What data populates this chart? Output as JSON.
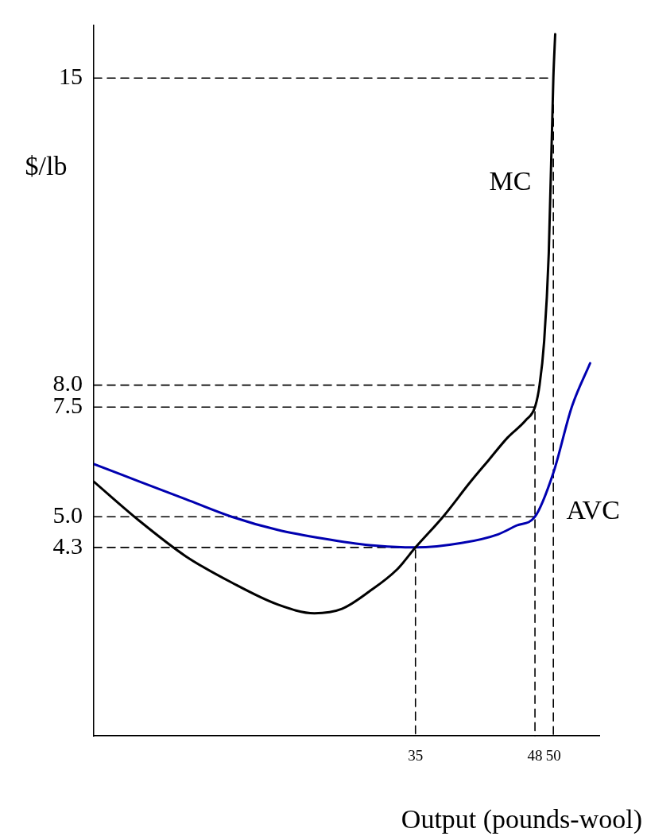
{
  "chart_data": {
    "type": "line",
    "xlabel": "Output (pounds-wool)",
    "ylabel": "$/lb",
    "xlim": [
      0,
      55
    ],
    "ylim": [
      0,
      16.2
    ],
    "xticks": [
      35,
      48,
      50
    ],
    "yticks": [
      4.3,
      {
        "value": 5,
        "label": "5.0"
      },
      7.5,
      {
        "value": 8,
        "label": "8.0"
      },
      15
    ],
    "grid": false,
    "legend": false,
    "marker": "none",
    "series": [
      {
        "name": "MC",
        "color": "#000000",
        "x": [
          0,
          5,
          10,
          15,
          20,
          24,
          27,
          30,
          33,
          35,
          38,
          41,
          43,
          45,
          47,
          48,
          48.5,
          49,
          49.5,
          50,
          50.2
        ],
        "values": [
          5.8,
          4.9,
          4.1,
          3.5,
          3.0,
          2.8,
          2.9,
          3.3,
          3.8,
          4.3,
          5.0,
          5.8,
          6.3,
          6.8,
          7.2,
          7.5,
          8.0,
          9.0,
          11,
          15,
          16
        ]
      },
      {
        "name": "AVC",
        "color": "#0000b0",
        "x": [
          0,
          5,
          10,
          15,
          20,
          25,
          30,
          35,
          40,
          44,
          46,
          48,
          50,
          52,
          54
        ],
        "values": [
          6.2,
          5.8,
          5.4,
          5.0,
          4.7,
          4.5,
          4.35,
          4.3,
          4.4,
          4.6,
          4.8,
          5.0,
          6.0,
          7.5,
          8.5
        ]
      },
      {
        "color": "#000000",
        "line_style": "dashed",
        "x": [
          0,
          50,
          50
        ],
        "values": [
          15,
          15,
          0
        ]
      },
      {
        "color": "#000000",
        "line_style": "dashed",
        "x": [
          0,
          48.5
        ],
        "values": [
          8.0,
          8.0
        ]
      },
      {
        "color": "#000000",
        "line_style": "dashed",
        "x": [
          0,
          48,
          48
        ],
        "values": [
          7.5,
          7.5,
          0
        ]
      },
      {
        "color": "#000000",
        "line_style": "dashed",
        "x": [
          0,
          48
        ],
        "values": [
          5.0,
          5.0
        ]
      },
      {
        "color": "#000000",
        "line_style": "dashed",
        "x": [
          0,
          35,
          35
        ],
        "values": [
          4.3,
          4.3,
          0
        ]
      }
    ]
  }
}
